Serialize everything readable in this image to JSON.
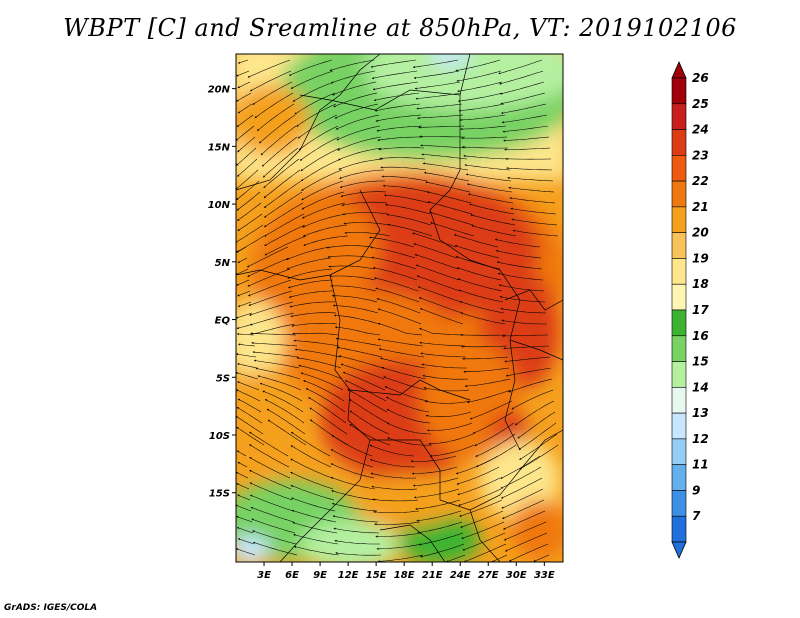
{
  "title": "WBPT [C] and Sreamline at 850hPa, VT: 2019102106",
  "footer": "GrADS: IGES/COLA",
  "map": {
    "lon_range": [
      0,
      35
    ],
    "lat_range": [
      -21,
      23
    ],
    "lon_ticks": [
      "3E",
      "6E",
      "9E",
      "12E",
      "15E",
      "18E",
      "21E",
      "24E",
      "27E",
      "30E",
      "33E"
    ],
    "lon_tick_values": [
      3,
      6,
      9,
      12,
      15,
      18,
      21,
      24,
      27,
      30,
      33
    ],
    "lat_ticks": [
      "20N",
      "15N",
      "10N",
      "5N",
      "EQ",
      "5S",
      "10S",
      "15S"
    ],
    "lat_tick_values": [
      20,
      15,
      10,
      5,
      0,
      -5,
      -10,
      -15
    ]
  },
  "colorbar": {
    "labels": [
      "26",
      "25",
      "24",
      "23",
      "22",
      "21",
      "20",
      "19",
      "18",
      "17",
      "16",
      "15",
      "14",
      "13",
      "12",
      "11",
      "9",
      "7"
    ],
    "colors": [
      "#a0000a",
      "#c81e1e",
      "#dc3c14",
      "#ee5a10",
      "#f07810",
      "#f5a01e",
      "#fac35a",
      "#fde68c",
      "#fdf5b4",
      "#3cb432",
      "#78d264",
      "#b4f0a0",
      "#e6f8f0",
      "#c8e6ff",
      "#96cdf5",
      "#64afec",
      "#3c91e6",
      "#2070dc"
    ]
  },
  "fields": {
    "colors": {
      "hot_core": "#dc3c14",
      "warm": "#f07810",
      "mild": "#f5a01e",
      "pale": "#fde68c",
      "green": "#78d264",
      "light_green": "#b4f0a0",
      "dark_green": "#3cb432",
      "cyan": "#c8e6ff"
    }
  }
}
